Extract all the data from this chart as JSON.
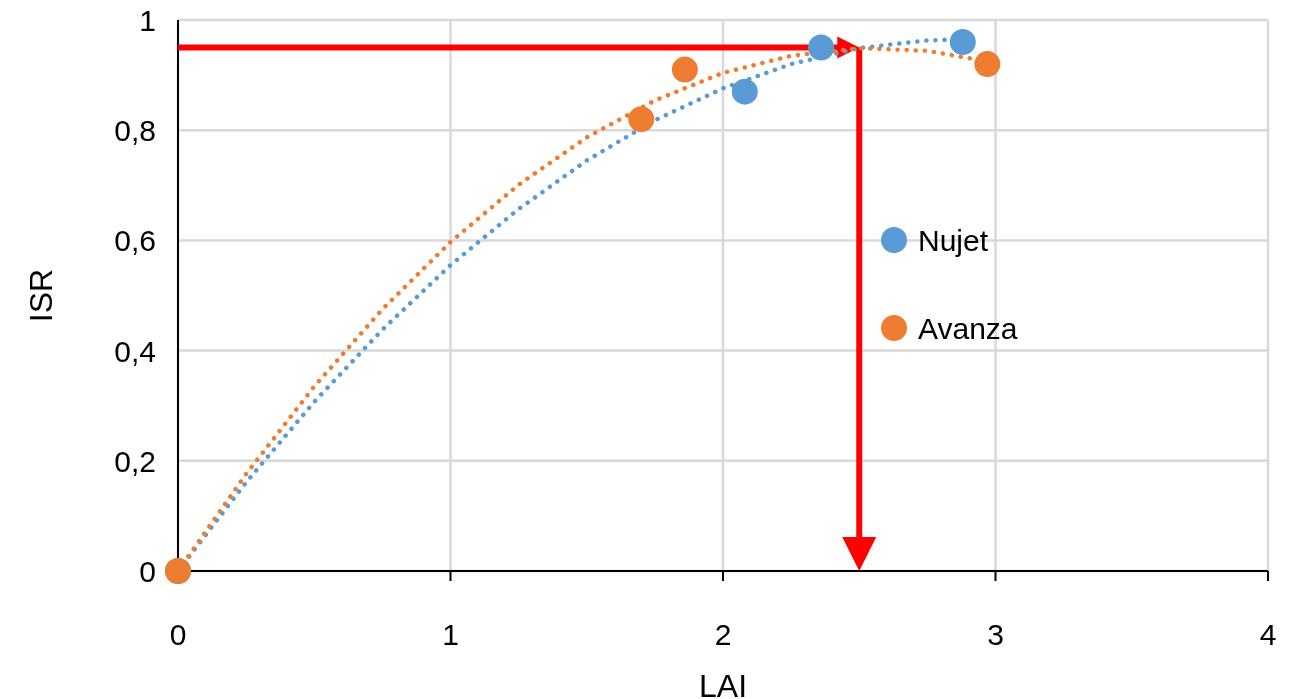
{
  "chart_data": {
    "type": "scatter",
    "xlabel": "LAI",
    "ylabel": "ISR",
    "xlim": [
      0,
      4
    ],
    "xticks": [
      0,
      1,
      2,
      3,
      4
    ],
    "ylim": [
      0,
      1
    ],
    "yticks": [
      0,
      {
        "value": 0.2,
        "label": "0,2"
      },
      {
        "value": 0.4,
        "label": "0,4"
      },
      {
        "value": 0.6,
        "label": "0,6"
      },
      {
        "value": 0.8,
        "label": "0,8"
      },
      1
    ],
    "grid": true,
    "legend": "right",
    "marker": "circle",
    "series": [
      {
        "name": "Nujet",
        "color": "#5b9bd5",
        "x": [
          0,
          2.08,
          2.36,
          2.88
        ],
        "values": [
          0,
          0.87,
          0.95,
          0.96
        ]
      },
      {
        "name": "Avanza",
        "color": "#ed7d31",
        "x": [
          0,
          1.7,
          1.86,
          2.97
        ],
        "values": [
          0,
          0.82,
          0.91,
          0.92
        ]
      },
      {
        "type": "line",
        "color": "#5b9bd5",
        "line_style": "dotted",
        "marker": "none",
        "x": [
          0,
          0.25,
          0.5,
          0.75,
          1,
          1.25,
          1.5,
          1.75,
          2,
          2.25,
          2.5,
          2.75,
          2.88
        ],
        "values": [
          0,
          0.161,
          0.307,
          0.438,
          0.555,
          0.657,
          0.745,
          0.818,
          0.876,
          0.92,
          0.949,
          0.963,
          0.965
        ]
      },
      {
        "type": "line",
        "color": "#ed7d31",
        "line_style": "dotted",
        "marker": "none",
        "x": [
          0,
          0.25,
          0.5,
          0.75,
          1,
          1.25,
          1.5,
          1.75,
          2,
          2.25,
          2.5,
          2.75,
          2.97
        ],
        "values": [
          0,
          0.176,
          0.335,
          0.475,
          0.597,
          0.701,
          0.787,
          0.854,
          0.904,
          0.935,
          0.949,
          0.944,
          0.925
        ]
      }
    ],
    "ref_lines": [
      {
        "axis": "y",
        "value": 0.95,
        "color": "#ff0000"
      },
      {
        "axis": "x",
        "value": 2.5,
        "color": "#ff0000"
      }
    ]
  }
}
